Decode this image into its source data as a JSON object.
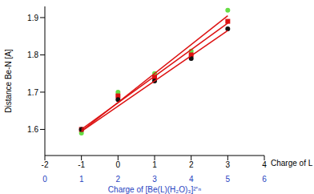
{
  "chart_data": {
    "type": "scatter",
    "xlabel": "Charge of L",
    "ylabel": "Distance Be-N [A]",
    "x2label": "Charge of [Be(L)(H₂O)₃]²⁺ⁿ",
    "x2color": "#1f3fbf",
    "x": [
      -1,
      0,
      1,
      2,
      3
    ],
    "xlim": [
      -2,
      4
    ],
    "xticks": [
      -2,
      -1,
      0,
      1,
      2,
      3,
      4
    ],
    "x2lim": [
      0,
      6
    ],
    "x2ticks": [
      0,
      1,
      2,
      3,
      4,
      5,
      6
    ],
    "ylim": [
      1.53,
      1.93
    ],
    "yticks": [
      1.6,
      1.7,
      1.8,
      1.9
    ],
    "grid": false,
    "series": [
      {
        "color": "#66dd44",
        "marker": "circle",
        "values": [
          1.59,
          1.7,
          1.75,
          1.81,
          1.92
        ]
      },
      {
        "color": "#dd1111",
        "marker": "square",
        "values": [
          1.6,
          1.69,
          1.74,
          1.8,
          1.89
        ]
      },
      {
        "color": "#111111",
        "marker": "circle",
        "values": [
          1.6,
          1.68,
          1.73,
          1.79,
          1.87
        ]
      },
      {
        "type": "line",
        "color": "#dd1111",
        "line_style": "solid",
        "x": [
          -1,
          3
        ],
        "values": [
          1.595,
          1.905
        ]
      },
      {
        "type": "line",
        "color": "#dd1111",
        "line_style": "solid",
        "x": [
          -1,
          3
        ],
        "values": [
          1.6,
          1.885
        ]
      },
      {
        "type": "line",
        "color": "#dd1111",
        "line_style": "solid",
        "x": [
          -1,
          3
        ],
        "values": [
          1.595,
          1.865
        ]
      }
    ]
  }
}
